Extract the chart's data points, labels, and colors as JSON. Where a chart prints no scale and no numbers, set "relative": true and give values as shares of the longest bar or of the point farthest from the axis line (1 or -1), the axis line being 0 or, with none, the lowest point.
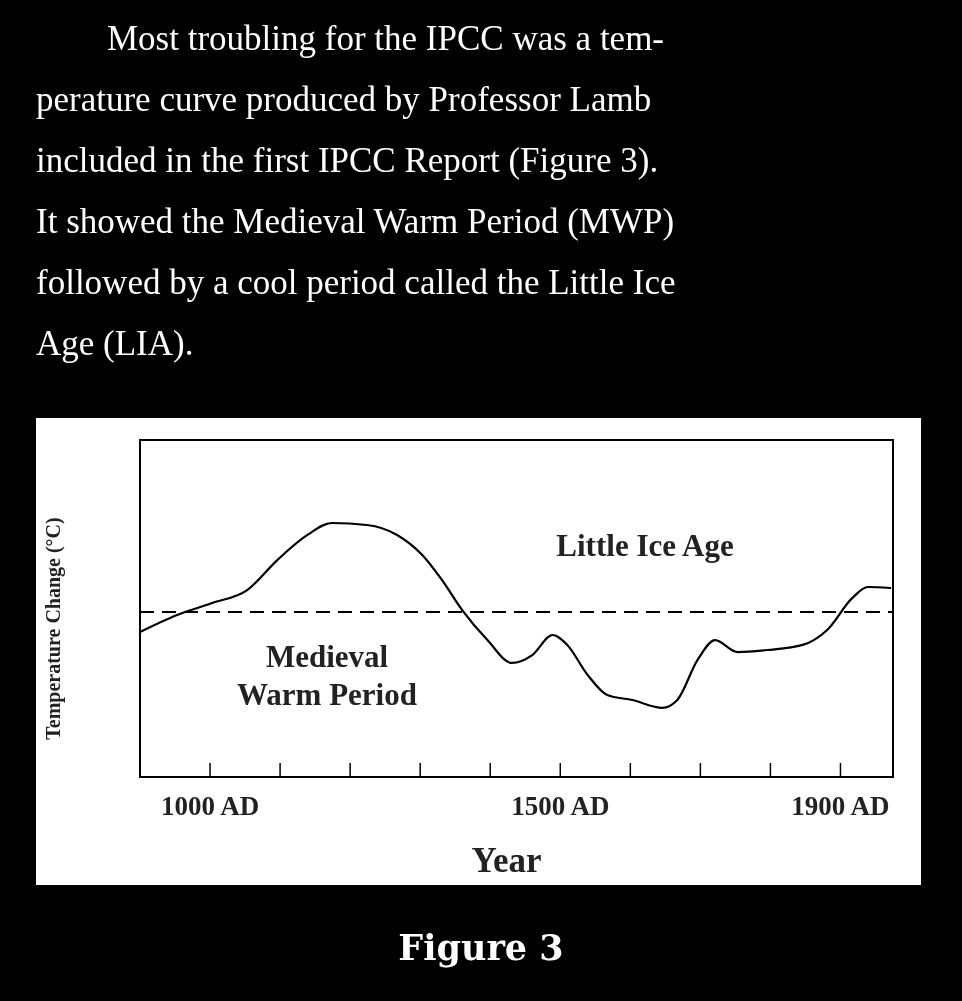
{
  "chart_data": {
    "type": "line",
    "title": "Most troubling for the IPCC was a tem-\nperature curve produced by Professor Lamb\nincluded in the first IPCC Report (Figure 3).\nIt showed the Medieval Warm Period (MWP)\nfollowed by a cool period called the Little Ice\nAge (LIA).",
    "xlabel": "Year",
    "ylabel": "Temperature Change (°C)",
    "relative": true,
    "xlim": [
      900,
      1975
    ],
    "xticks": [
      {
        "value": 1000,
        "label": "1000 AD"
      },
      {
        "value": 1100,
        "label": null
      },
      {
        "value": 1200,
        "label": null
      },
      {
        "value": 1300,
        "label": null
      },
      {
        "value": 1400,
        "label": null
      },
      {
        "value": 1500,
        "label": "1500 AD"
      },
      {
        "value": 1600,
        "label": null
      },
      {
        "value": 1700,
        "label": null
      },
      {
        "value": 1800,
        "label": null
      },
      {
        "value": 1900,
        "label": "1900 AD"
      }
    ],
    "x": [
      900,
      953,
      1003,
      1053,
      1096,
      1139,
      1174,
      1224,
      1267,
      1303,
      1331,
      1360,
      1396,
      1431,
      1460,
      1489,
      1510,
      1539,
      1567,
      1603,
      1646,
      1667,
      1696,
      1721,
      1753,
      1796,
      1846,
      1881,
      1917,
      1939,
      1971
    ],
    "series": [
      {
        "color": "#000000",
        "values": [
          0.571,
          0.638,
          0.685,
          0.736,
          0.854,
          0.953,
          1.0,
          0.992,
          0.953,
          0.874,
          0.776,
          0.657,
          0.539,
          0.449,
          0.48,
          0.559,
          0.52,
          0.402,
          0.323,
          0.303,
          0.272,
          0.303,
          0.461,
          0.539,
          0.492,
          0.5,
          0.52,
          0.579,
          0.705,
          0.748,
          0.744
        ]
      }
    ],
    "ref_lines": [
      {
        "axis": "y",
        "value": 0.65,
        "color": "#000000",
        "line_style": "dashed"
      }
    ],
    "grid": false,
    "marker": "none",
    "line_style": "solid",
    "annotations": [
      "Little Ice Age",
      "Medieval\nWarm Period",
      "Figure 3"
    ]
  }
}
